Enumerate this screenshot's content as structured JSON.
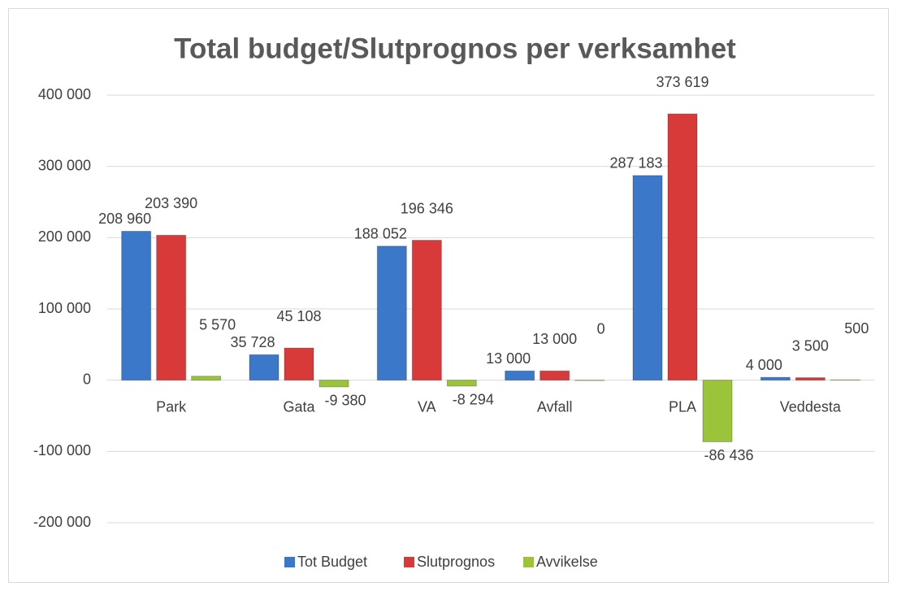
{
  "chart_data": {
    "type": "bar",
    "title": "Total budget/Slutprognos per verksamhet",
    "categories": [
      "Park",
      "Gata",
      "VA",
      "Avfall",
      "PLA",
      "Veddesta"
    ],
    "series": [
      {
        "name": "Tot Budget",
        "color": "#3b78c9",
        "values": [
          208960,
          35728,
          188052,
          13000,
          287183,
          4000
        ],
        "value_labels": [
          "208 960",
          "35 728",
          "188 052",
          "13 000",
          "287 183",
          "4 000"
        ]
      },
      {
        "name": "Slutprognos",
        "color": "#d83a3a",
        "values": [
          203390,
          45108,
          196346,
          13000,
          373619,
          3500
        ],
        "value_labels": [
          "203 390",
          "45 108",
          "196 346",
          "13 000",
          "373 619",
          "3 500"
        ]
      },
      {
        "name": "Avvikelse",
        "color": "#9cc43b",
        "values": [
          5570,
          -9380,
          -8294,
          0,
          -86436,
          500
        ],
        "value_labels": [
          "5 570",
          "-9 380",
          "-8 294",
          "0",
          "-86 436",
          "500"
        ]
      }
    ],
    "ylim": [
      -200000,
      400000
    ],
    "yticks": [
      {
        "value": -200000,
        "label": "-200 000"
      },
      {
        "value": -100000,
        "label": "-100 000"
      },
      0,
      {
        "value": 100000,
        "label": "100 000"
      },
      {
        "value": 200000,
        "label": "200 000"
      },
      {
        "value": 300000,
        "label": "300 000"
      },
      {
        "value": 400000,
        "label": "400 000"
      }
    ],
    "grid": true,
    "legend": "bottom"
  }
}
